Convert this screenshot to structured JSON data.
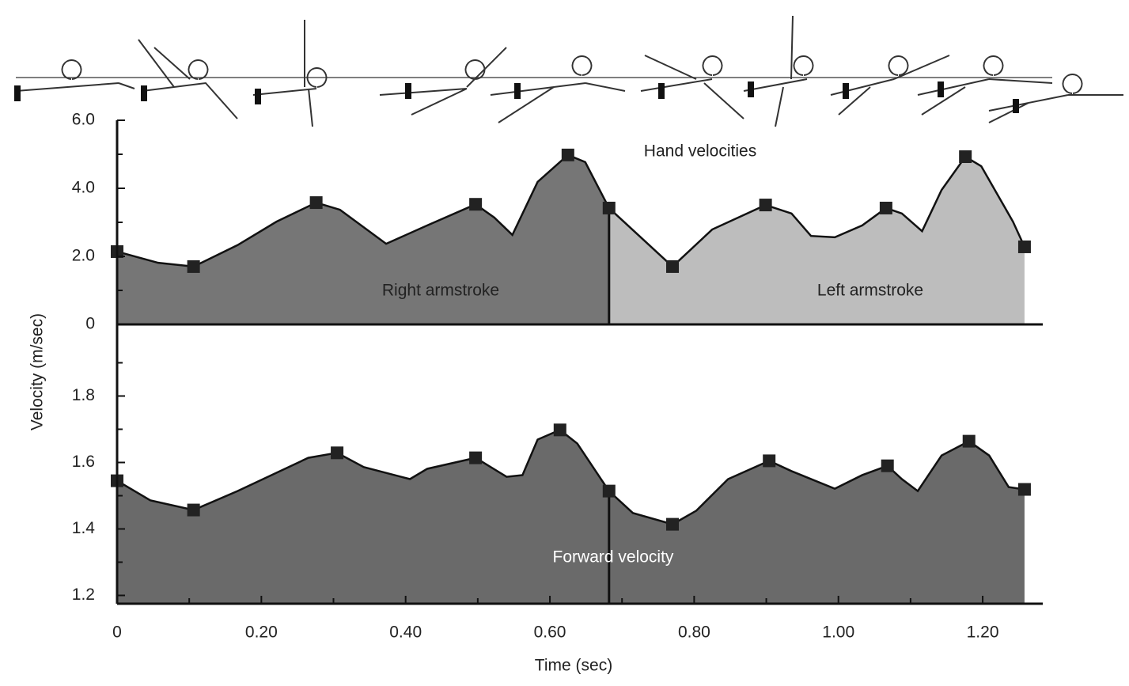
{
  "chart_data": [
    {
      "type": "area",
      "title": "Hand velocities",
      "ylabel": "Velocity (m/sec)",
      "annotations": [
        "Right armstroke",
        "Left armstroke"
      ],
      "x": [
        0,
        0.057,
        0.106,
        0.167,
        0.221,
        0.276,
        0.309,
        0.373,
        0.43,
        0.497,
        0.523,
        0.548,
        0.583,
        0.625,
        0.649,
        0.682,
        0.726,
        0.77,
        0.825,
        0.899,
        0.935,
        0.962,
        0.995,
        1.033,
        1.066,
        1.088,
        1.116,
        1.143,
        1.176,
        1.198,
        1.242,
        1.258
      ],
      "values": [
        2.14,
        1.81,
        1.7,
        2.33,
        3.02,
        3.58,
        3.37,
        2.37,
        2.91,
        3.53,
        3.14,
        2.63,
        4.19,
        4.98,
        4.77,
        3.42,
        2.56,
        1.7,
        2.79,
        3.51,
        3.26,
        2.6,
        2.56,
        2.91,
        3.42,
        3.26,
        2.74,
        3.95,
        4.93,
        4.65,
        3.02,
        2.28
      ],
      "marker_x": [
        0,
        0.106,
        0.276,
        0.497,
        0.625,
        0.682,
        0.77,
        0.899,
        1.066,
        1.176,
        1.258
      ],
      "marker_values": [
        2.14,
        1.7,
        3.58,
        3.53,
        4.98,
        3.42,
        1.7,
        3.51,
        3.42,
        4.93,
        2.28
      ],
      "divider": 0.682,
      "colors": [
        "#767676",
        "#bdbdbd"
      ],
      "xlim": [
        0,
        1.28
      ],
      "ylim": [
        0,
        6
      ],
      "yticks": [
        0,
        {
          "value": 2,
          "label": "2.0"
        },
        {
          "value": 4,
          "label": "4.0"
        },
        {
          "value": 6,
          "label": "6.0"
        }
      ],
      "minor_yticks": [
        1,
        3,
        5
      ]
    },
    {
      "type": "area",
      "title": "Forward velocity",
      "xlabel": "Time (sec)",
      "x": [
        0,
        0.046,
        0.106,
        0.167,
        0.265,
        0.305,
        0.342,
        0.406,
        0.43,
        0.497,
        0.54,
        0.562,
        0.583,
        0.614,
        0.638,
        0.682,
        0.715,
        0.77,
        0.803,
        0.847,
        0.904,
        0.935,
        0.995,
        1.033,
        1.068,
        1.088,
        1.11,
        1.143,
        1.181,
        1.209,
        1.236,
        1.258
      ],
      "values": [
        1.545,
        1.486,
        1.457,
        1.514,
        1.614,
        1.629,
        1.586,
        1.55,
        1.581,
        1.614,
        1.557,
        1.562,
        1.669,
        1.698,
        1.657,
        1.514,
        1.448,
        1.414,
        1.455,
        1.55,
        1.605,
        1.574,
        1.521,
        1.562,
        1.59,
        1.55,
        1.514,
        1.621,
        1.664,
        1.621,
        1.526,
        1.519
      ],
      "marker_x": [
        0,
        0.106,
        0.305,
        0.497,
        0.614,
        0.682,
        0.77,
        0.904,
        1.068,
        1.181,
        1.258
      ],
      "marker_values": [
        1.545,
        1.457,
        1.629,
        1.614,
        1.698,
        1.514,
        1.414,
        1.605,
        1.59,
        1.664,
        1.519
      ],
      "divider": 0.682,
      "colors": [
        "#6a6a6a",
        "#6a6a6a"
      ],
      "xlim": [
        0,
        1.28
      ],
      "ylim": [
        1.175,
        2.0
      ],
      "xticks": [
        0,
        {
          "value": 0.2,
          "label": "0.20"
        },
        {
          "value": 0.4,
          "label": "0.40"
        },
        {
          "value": 0.6,
          "label": "0.60"
        },
        {
          "value": 0.8,
          "label": "0.80"
        },
        {
          "value": 1.0,
          "label": "1.00"
        },
        {
          "value": 1.2,
          "label": "1.20"
        }
      ],
      "minor_xticks": [
        0.1,
        0.3,
        0.5,
        0.7,
        0.9,
        1.1
      ],
      "yticks": [
        1.2,
        1.4,
        1.6,
        1.8
      ],
      "minor_yticks": [
        1.3,
        1.5,
        1.7,
        1.9
      ]
    }
  ]
}
